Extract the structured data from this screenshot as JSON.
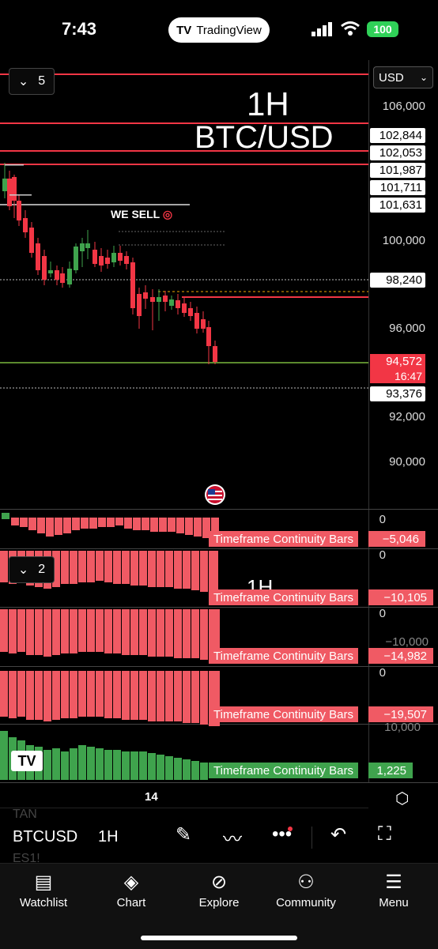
{
  "status": {
    "time": "7:43",
    "app_pill": "TradingView",
    "battery": "100"
  },
  "chart": {
    "currency": "USD",
    "legend_count": "5",
    "interval": "1H",
    "symbol_overlay": "BTC/USD",
    "annotation": "WE SELL",
    "axis_ticks": [
      "106,000",
      "100,000",
      "96,000",
      "92,000",
      "90,000"
    ],
    "level_labels": [
      "102,844",
      "102,053",
      "101,987",
      "101,711",
      "101,631",
      "98,240",
      "93,376"
    ],
    "current_price": "94,572",
    "countdown": "16:47",
    "date_tick": "14"
  },
  "panes": [
    {
      "label": "Timeframe Continuity Bars",
      "value": "−5,046",
      "axis_top": "0",
      "color": "#f05a64"
    },
    {
      "label": "Timeframe Continuity Bars",
      "value": "−10,105",
      "axis_top": "0",
      "color": "#f05a64",
      "legend_count": "2",
      "overlay": "1H"
    },
    {
      "label": "Timeframe Continuity Bars",
      "value": "−14,982",
      "axis_top": "0",
      "axis_mid": "−10,000",
      "color": "#f05a64"
    },
    {
      "label": "Timeframe Continuity Bars",
      "value": "−19,507",
      "axis_top": "0",
      "color": "#f05a64"
    },
    {
      "label": "Timeframe Continuity Bars",
      "value": "1,225",
      "axis_top": "10,000",
      "color": "#3fa34d"
    }
  ],
  "toolbar": {
    "symbol": "BTCUSD",
    "interval": "1H",
    "ghost_top": "TAN",
    "ghost_bottom": "ES1!"
  },
  "nav": [
    {
      "label": "Watchlist",
      "icon": "watchlist-icon"
    },
    {
      "label": "Chart",
      "icon": "chart-icon"
    },
    {
      "label": "Explore",
      "icon": "compass-icon"
    },
    {
      "label": "Community",
      "icon": "community-icon"
    },
    {
      "label": "Menu",
      "icon": "menu-icon"
    }
  ],
  "colors": {
    "bear": "#f23645",
    "bull": "#3fa34d",
    "level_line": "#f23645"
  }
}
